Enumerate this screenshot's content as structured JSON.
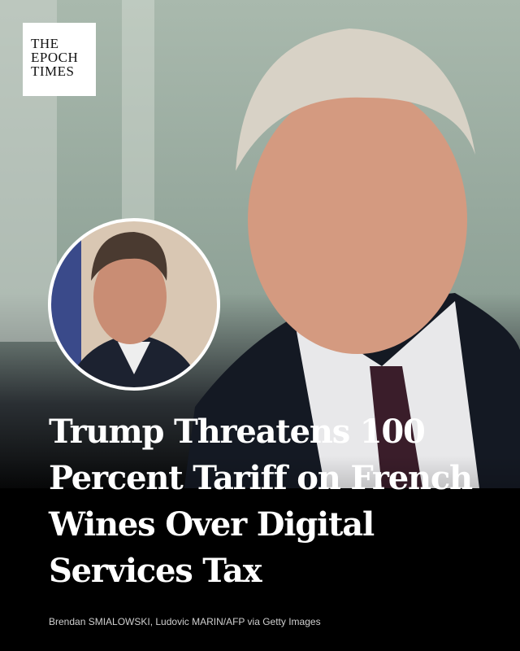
{
  "logo": {
    "lines": [
      "THE",
      "EPOCH",
      "TIMES"
    ]
  },
  "headline": {
    "lines": [
      "Trump Threatens 100",
      "Percent Tariff on French",
      "Wines Over Digital",
      "Services Tax"
    ]
  },
  "credit": "Brendan SMIALOWSKI, Ludovic MARIN/AFP via Getty Images"
}
